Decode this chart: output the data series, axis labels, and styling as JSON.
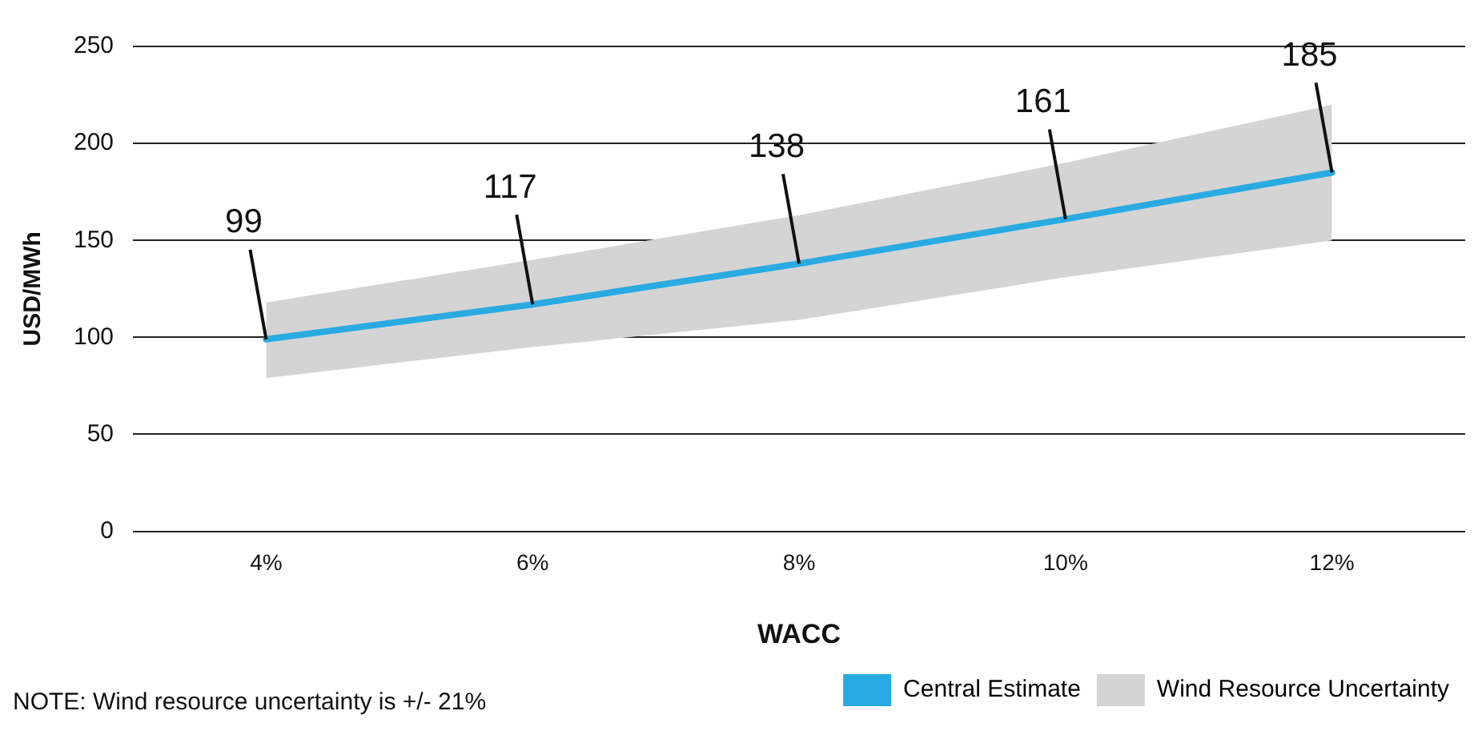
{
  "chart_data": {
    "type": "line",
    "xlabel": "WACC",
    "ylabel": "USD/MWh",
    "categories": [
      "4%",
      "6%",
      "8%",
      "10%",
      "12%"
    ],
    "series": [
      {
        "name": "Central Estimate",
        "color": "#29abe2",
        "values": [
          99,
          117,
          138,
          161,
          185
        ],
        "value_labels": [
          "99",
          "117",
          "138",
          "161",
          "185"
        ],
        "lower": [
          79,
          95,
          109,
          131,
          150
        ],
        "upper": [
          118,
          140,
          163,
          190,
          220
        ]
      },
      {
        "name": "Wind Resource Uncertainty",
        "type": "area",
        "color": "#d5d4d5",
        "values": [
          null,
          null,
          null,
          null,
          null
        ]
      }
    ],
    "ylim": [
      0,
      250
    ],
    "yticks": [
      0,
      50,
      100,
      150,
      200,
      250
    ],
    "grid": "y",
    "legend": "bottom right",
    "marker": "none",
    "annotations": [
      "NOTE: Wind resource uncertainty is +/- 21%"
    ]
  }
}
